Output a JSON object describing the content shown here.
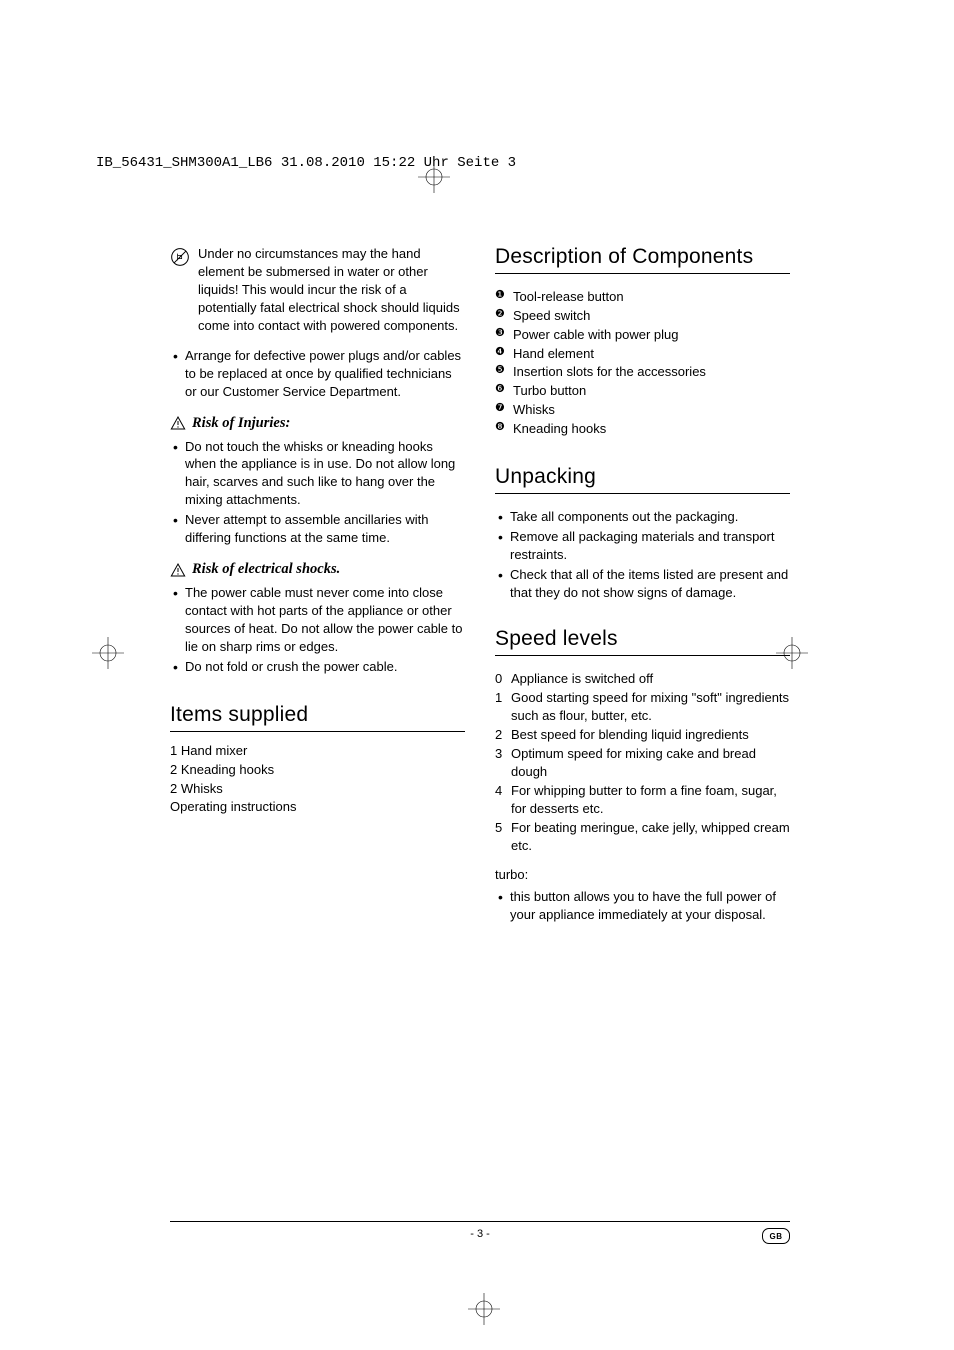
{
  "typography": {
    "body_font": "Helvetica Neue Light",
    "body_fontsize_pt": 13,
    "heading_fontsize_pt": 21,
    "heading_weight": 300,
    "subheading_font": "Georgia Italic Bold",
    "subheading_fontsize_pt": 14.5,
    "header_font": "Courier New",
    "header_fontsize_pt": 14,
    "text_color": "#000000",
    "background_color": "#ffffff",
    "rule_color": "#000000",
    "line_height": 1.38
  },
  "header_line": "IB_56431_SHM300A1_LB6  31.08.2010  15:22 Uhr  Seite 3",
  "left": {
    "no_submerse": "Under no circumstances may the hand element be submersed in water or other liquids! This would incur the risk of a potentially fatal electrical shock should liquids come into contact with powered components.",
    "arrange_defective": "Arrange for defective power plugs and/or cables to be replaced at once by qualified technicians or our Customer Service Department.",
    "risk_injuries_h": "Risk of Injuries:",
    "risk_injuries": [
      "Do not touch the whisks or kneading hooks when the appliance is in use. Do not allow long hair, scarves and such like to hang over the mixing attachments.",
      "Never attempt to assemble ancillaries with differing functions at the same time."
    ],
    "risk_shock_h": "Risk of electrical shocks.",
    "risk_shock": [
      "The power cable must never come into close contact with hot parts of the appliance or other sources of heat. Do not allow the power cable to lie on sharp rims or edges.",
      "Do not fold or crush the power cable."
    ],
    "items_supplied_h": "Items supplied",
    "items_supplied": [
      "1 Hand mixer",
      "2 Kneading hooks",
      "2 Whisks",
      "Operating instructions"
    ]
  },
  "right": {
    "components_h": "Description of Components",
    "components": [
      "Tool-release button",
      "Speed switch",
      "Power cable with power plug",
      "Hand element",
      "Insertion slots for the accessories",
      "Turbo button",
      "Whisks",
      "Kneading hooks"
    ],
    "unpacking_h": "Unpacking",
    "unpacking": [
      "Take all components out the packaging.",
      "Remove all packaging materials and transport restraints.",
      "Check that all of the items listed are present and that they do not show signs of damage."
    ],
    "speed_h": "Speed levels",
    "speed": [
      {
        "n": "0",
        "t": "Appliance is switched off"
      },
      {
        "n": "1",
        "t": "Good starting speed for mixing \"soft\" ingredients such as flour, butter, etc."
      },
      {
        "n": "2",
        "t": "Best speed for blending liquid ingredients"
      },
      {
        "n": "3",
        "t": "Optimum speed for mixing cake and bread dough"
      },
      {
        "n": "4",
        "t": "For whipping butter to form a fine foam, sugar, for desserts etc."
      },
      {
        "n": "5",
        "t": "For beating meringue, cake jelly, whipped cream etc."
      }
    ],
    "turbo_label": "turbo:",
    "turbo": "this button allows you to have the full power of your appliance immediately at your disposal."
  },
  "page_number": "- 3 -",
  "region_badge": "GB",
  "icons": {
    "triangle_stroke": "#000000",
    "triangle_fill": "none",
    "crop_stroke": "#000000",
    "crop_stroke_width": 0.6
  }
}
